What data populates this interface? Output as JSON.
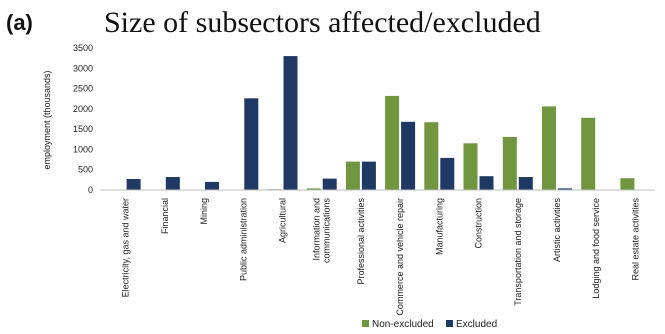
{
  "panel_label": "(a)",
  "chart_data": {
    "type": "bar",
    "title": "Size of subsectors affected/excluded",
    "ylabel": "employment (thousands)",
    "xlabel": "",
    "ylim": [
      0,
      3500
    ],
    "yticks": [
      0,
      500,
      1000,
      1500,
      2000,
      2500,
      3000,
      3500
    ],
    "grid": false,
    "legend_position": "bottom-right",
    "categories": [
      [
        "Electricity, gas and water"
      ],
      [
        "Financial"
      ],
      [
        "Mining"
      ],
      [
        "Public administration"
      ],
      [
        "Agricultural"
      ],
      [
        "Information and",
        "communications"
      ],
      [
        "Professional activities"
      ],
      [
        "Commerce and vehicle repair"
      ],
      [
        "Manufacturing"
      ],
      [
        "Construction"
      ],
      [
        "Transportation and storage"
      ],
      [
        "Artistic activities"
      ],
      [
        "Lodging and food service"
      ],
      [
        "Real estate activities"
      ]
    ],
    "series": [
      {
        "name": "Non-excluded",
        "color": "#70963f",
        "values": [
          0,
          0,
          0,
          0,
          20,
          40,
          700,
          2320,
          1670,
          1150,
          1310,
          2060,
          1780,
          290
        ]
      },
      {
        "name": "Excluded",
        "color": "#1f3864",
        "values": [
          270,
          320,
          200,
          2260,
          3300,
          280,
          700,
          1680,
          790,
          340,
          320,
          40,
          0,
          0
        ]
      }
    ]
  }
}
